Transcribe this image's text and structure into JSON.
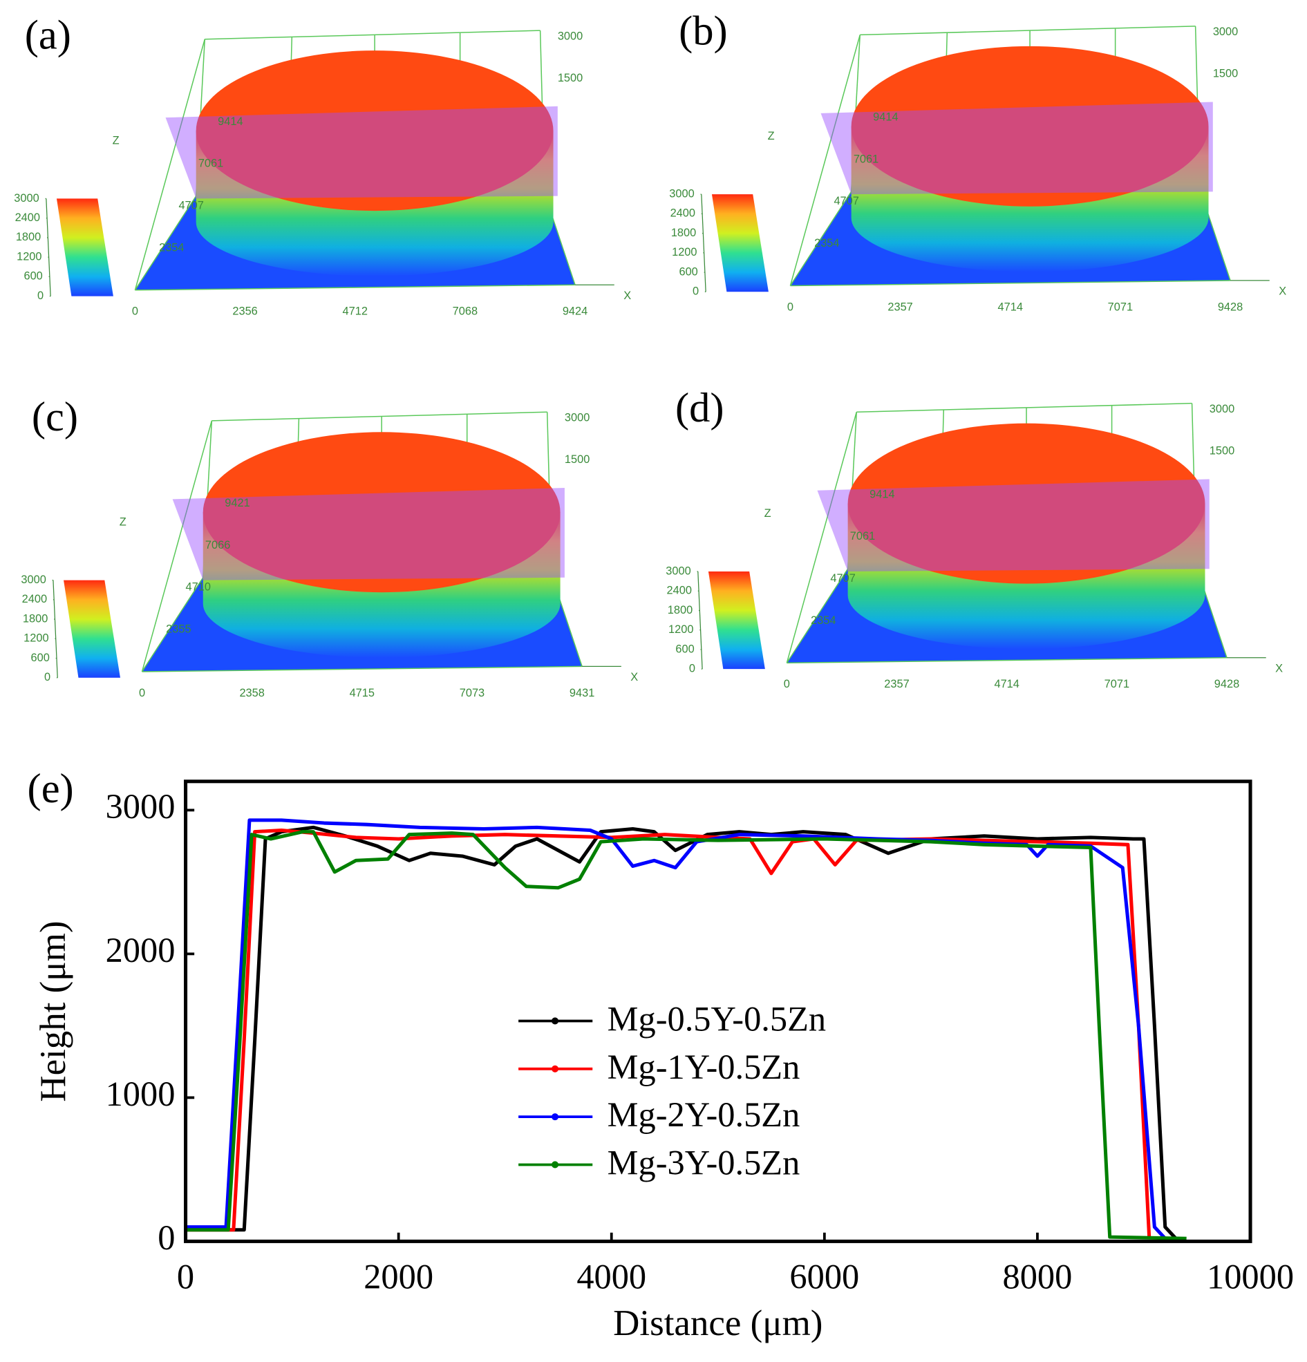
{
  "chart_data": [
    {
      "type": "surface3d",
      "label": "(a)",
      "xlabel": "X",
      "zlabel": "Z",
      "xlim": [
        0,
        9424
      ],
      "xticks": [
        0,
        2356,
        4712,
        7068,
        9424
      ],
      "ylim": [
        0,
        9414
      ],
      "yticks": [
        2354,
        4707,
        7061,
        9414
      ],
      "zlim": [
        0,
        3000
      ],
      "zticks": [
        1500,
        3000
      ],
      "clim": [
        0,
        3000
      ],
      "colorbar_ticks": [
        0,
        600,
        1200,
        1800,
        2400,
        3000
      ]
    },
    {
      "type": "surface3d",
      "label": "(b)",
      "xlabel": "X",
      "zlabel": "Z",
      "xlim": [
        0,
        9428
      ],
      "xticks": [
        0,
        2357,
        4714,
        7071,
        9428
      ],
      "ylim": [
        0,
        9414
      ],
      "yticks": [
        2354,
        4707,
        7061,
        9414
      ],
      "zlim": [
        0,
        3000
      ],
      "zticks": [
        1500,
        3000
      ],
      "clim": [
        0,
        3000
      ],
      "colorbar_ticks": [
        0,
        600,
        1200,
        1800,
        2400,
        3000
      ]
    },
    {
      "type": "surface3d",
      "label": "(c)",
      "xlabel": "X",
      "zlabel": "Z",
      "xlim": [
        0,
        9431
      ],
      "xticks": [
        0,
        2358,
        4715,
        7073,
        9431
      ],
      "ylim": [
        0,
        9421
      ],
      "yticks": [
        2355,
        4710,
        7066,
        9421
      ],
      "zlim": [
        0,
        3000
      ],
      "zticks": [
        1500,
        3000
      ],
      "clim": [
        0,
        3000
      ],
      "colorbar_ticks": [
        0,
        600,
        1200,
        1800,
        2400,
        3000
      ]
    },
    {
      "type": "surface3d",
      "label": "(d)",
      "xlabel": "X",
      "zlabel": "Z",
      "xlim": [
        0,
        9428
      ],
      "xticks": [
        0,
        2357,
        4714,
        7071,
        9428
      ],
      "ylim": [
        0,
        9414
      ],
      "yticks": [
        2354,
        4707,
        7061,
        9414
      ],
      "zlim": [
        0,
        3000
      ],
      "zticks": [
        1500,
        3000
      ],
      "clim": [
        0,
        3000
      ],
      "colorbar_ticks": [
        0,
        600,
        1200,
        1800,
        2400,
        3000
      ]
    },
    {
      "type": "line",
      "label": "(e)",
      "xlabel": "Distance (μm)",
      "ylabel": "Height (μm)",
      "xlim": [
        0,
        10000
      ],
      "xticks": [
        0,
        2000,
        4000,
        6000,
        8000,
        10000
      ],
      "ylim": [
        0,
        3200
      ],
      "yticks": [
        0,
        1000,
        2000,
        3000
      ],
      "legend": "center",
      "series": [
        {
          "name": "Mg-0.5Y-0.5Zn",
          "color": "#000000",
          "x": [
            0,
            550,
            650,
            750,
            900,
            1200,
            1500,
            1800,
            2100,
            2300,
            2600,
            2900,
            3100,
            3300,
            3500,
            3700,
            3900,
            4200,
            4400,
            4600,
            4900,
            5200,
            5500,
            5800,
            6200,
            6600,
            7000,
            7500,
            8000,
            8500,
            8900,
            9000,
            9100,
            9200,
            9300
          ],
          "values": [
            80,
            80,
            1400,
            2800,
            2850,
            2880,
            2820,
            2750,
            2650,
            2700,
            2680,
            2620,
            2750,
            2800,
            2720,
            2640,
            2850,
            2870,
            2850,
            2720,
            2830,
            2850,
            2830,
            2850,
            2830,
            2700,
            2800,
            2820,
            2800,
            2810,
            2800,
            2800,
            1500,
            100,
            20
          ]
        },
        {
          "name": "Mg-1Y-0.5Zn",
          "color": "#ff0000",
          "x": [
            0,
            450,
            550,
            650,
            900,
            1200,
            1600,
            2000,
            2500,
            3000,
            3500,
            4000,
            4500,
            5000,
            5300,
            5500,
            5700,
            5900,
            6100,
            6300,
            7000,
            7500,
            8000,
            8500,
            8850,
            8950,
            9050
          ],
          "values": [
            80,
            80,
            1400,
            2850,
            2860,
            2840,
            2810,
            2800,
            2820,
            2830,
            2820,
            2810,
            2830,
            2810,
            2800,
            2560,
            2780,
            2800,
            2620,
            2790,
            2800,
            2790,
            2780,
            2770,
            2760,
            1500,
            30
          ]
        },
        {
          "name": "Mg-2Y-0.5Zn",
          "color": "#0000ff",
          "x": [
            0,
            380,
            490,
            600,
            900,
            1300,
            1700,
            2200,
            2800,
            3300,
            3800,
            4000,
            4200,
            4400,
            4600,
            4800,
            5200,
            5800,
            6500,
            7000,
            7500,
            7900,
            8000,
            8100,
            8500,
            8800,
            8950,
            9100,
            9200
          ],
          "values": [
            100,
            100,
            1500,
            2930,
            2930,
            2910,
            2900,
            2880,
            2870,
            2880,
            2860,
            2800,
            2610,
            2650,
            2600,
            2780,
            2830,
            2820,
            2800,
            2790,
            2770,
            2760,
            2680,
            2760,
            2750,
            2600,
            1500,
            100,
            20
          ]
        },
        {
          "name": "Mg-3Y-0.5Zn",
          "color": "#008000",
          "x": [
            0,
            400,
            510,
            620,
            800,
            1100,
            1200,
            1400,
            1600,
            1900,
            2100,
            2500,
            2700,
            3000,
            3200,
            3500,
            3700,
            3900,
            4300,
            5000,
            6000,
            7000,
            7500,
            8000,
            8500,
            8580,
            8680,
            9400
          ],
          "values": [
            80,
            80,
            1400,
            2830,
            2800,
            2850,
            2850,
            2570,
            2650,
            2660,
            2830,
            2840,
            2830,
            2600,
            2470,
            2460,
            2520,
            2780,
            2800,
            2790,
            2800,
            2780,
            2760,
            2750,
            2740,
            1500,
            30,
            20
          ]
        }
      ]
    }
  ]
}
